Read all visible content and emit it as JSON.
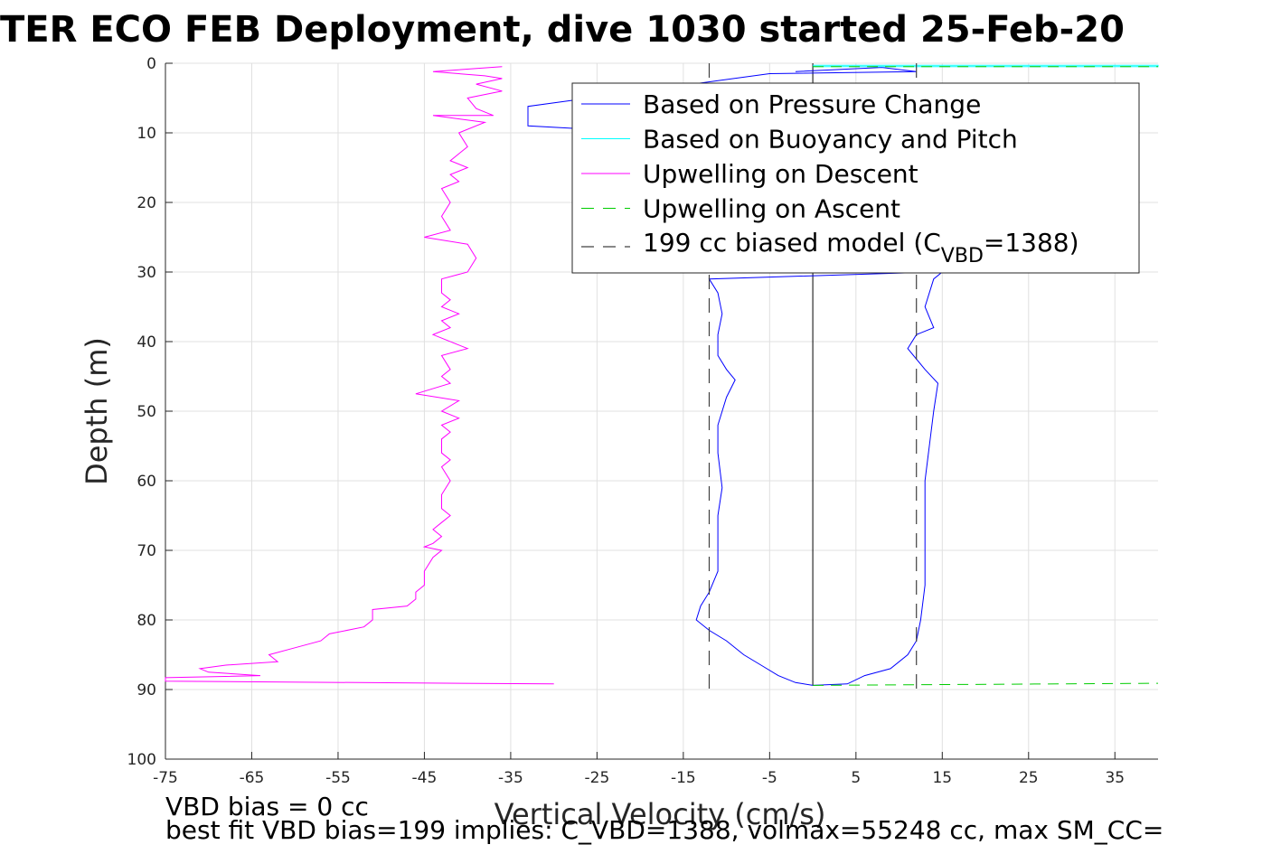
{
  "chart_data": {
    "type": "line",
    "title": "TER ECO FEB Deployment, dive 1030 started 25-Feb-20",
    "xlabel": "Vertical Velocity (cm/s)",
    "ylabel": "Depth (m)",
    "xlim": [
      -75,
      40
    ],
    "ylim": [
      0,
      100
    ],
    "y_reversed": true,
    "grid": true,
    "x_ticks": [
      "-75",
      "-65",
      "-55",
      "-45",
      "-35",
      "-25",
      "-15",
      "-5",
      "5",
      "15",
      "25",
      "35"
    ],
    "y_ticks": [
      "0",
      "10",
      "20",
      "30",
      "40",
      "50",
      "60",
      "70",
      "80",
      "90",
      "100"
    ],
    "legend_position": "top-right",
    "legend": {
      "entries": [
        {
          "label": "Based on Pressure Change",
          "color": "#0000ff",
          "style": "solid"
        },
        {
          "label": "Based on Buoyancy and Pitch",
          "color": "#00ffff",
          "style": "solid"
        },
        {
          "label": "Upwelling on Descent",
          "color": "#ff00ff",
          "style": "solid"
        },
        {
          "label": "Upwelling on Ascent",
          "color": "#00cc00",
          "style": "dashed"
        }
      ],
      "model_prefix": "199 cc biased model (C",
      "model_sub": "VBD",
      "model_suffix": "=1388)",
      "model_color": "#404040"
    },
    "series": [
      {
        "name": "Based on Pressure Change",
        "color": "#0000ff",
        "points": [
          [
            -2,
            1.2
          ],
          [
            8,
            0.6
          ],
          [
            12,
            1.2
          ],
          [
            -5,
            1.5
          ],
          [
            -33,
            6.2
          ],
          [
            -33,
            9
          ],
          [
            -3,
            11
          ],
          [
            5,
            12
          ],
          [
            12,
            13
          ],
          [
            15,
            15
          ],
          [
            16,
            20
          ],
          [
            15,
            26
          ],
          [
            14,
            30
          ],
          [
            -12,
            31
          ],
          [
            -11,
            33
          ],
          [
            -10.5,
            36
          ],
          [
            -11,
            39
          ],
          [
            -11,
            42
          ],
          [
            -10,
            44
          ],
          [
            -9,
            45.5
          ],
          [
            -10,
            48
          ],
          [
            -11,
            52
          ],
          [
            -11,
            56
          ],
          [
            -10.5,
            61
          ],
          [
            -11,
            65
          ],
          [
            -11,
            70
          ],
          [
            -11,
            73
          ],
          [
            -12,
            76
          ],
          [
            -13,
            78
          ],
          [
            -13.5,
            80
          ],
          [
            -12,
            81.5
          ],
          [
            -10,
            83
          ],
          [
            -8,
            85
          ],
          [
            -6,
            86.5
          ],
          [
            -4,
            88
          ],
          [
            -2,
            89
          ],
          [
            0,
            89.4
          ],
          [
            4,
            89.2
          ],
          [
            6,
            88
          ],
          [
            9,
            87
          ],
          [
            11,
            85
          ],
          [
            12,
            83
          ],
          [
            12.5,
            80
          ],
          [
            13,
            75
          ],
          [
            13,
            70
          ],
          [
            13,
            65
          ],
          [
            13,
            60
          ],
          [
            13.5,
            55
          ],
          [
            14,
            50
          ],
          [
            14.5,
            46
          ],
          [
            13,
            44
          ],
          [
            11,
            41
          ],
          [
            12,
            39
          ],
          [
            14,
            38
          ],
          [
            13,
            35
          ],
          [
            14,
            31
          ],
          [
            15,
            30
          ]
        ]
      },
      {
        "name": "Based on Buoyancy and Pitch",
        "color": "#00ffff",
        "points": [
          [
            0,
            0.3
          ],
          [
            40,
            0.3
          ],
          [
            40,
            0.5
          ],
          [
            0,
            0.5
          ]
        ]
      },
      {
        "name": "Upwelling on Descent",
        "color": "#ff00ff",
        "points": [
          [
            -36,
            0.5
          ],
          [
            -44,
            1.2
          ],
          [
            -38,
            1.8
          ],
          [
            -36,
            2.2
          ],
          [
            -39,
            3
          ],
          [
            -36,
            4
          ],
          [
            -40,
            5
          ],
          [
            -39,
            6.5
          ],
          [
            -37,
            7.5
          ],
          [
            -44,
            7.5
          ],
          [
            -38,
            8.5
          ],
          [
            -41,
            10
          ],
          [
            -40,
            12
          ],
          [
            -41,
            13
          ],
          [
            -42,
            14
          ],
          [
            -40,
            15
          ],
          [
            -42,
            16
          ],
          [
            -41,
            17
          ],
          [
            -43,
            18
          ],
          [
            -42,
            20
          ],
          [
            -43,
            22
          ],
          [
            -42,
            24
          ],
          [
            -45,
            25
          ],
          [
            -40,
            26
          ],
          [
            -39,
            28
          ],
          [
            -40,
            30
          ],
          [
            -43,
            31
          ],
          [
            -43,
            33
          ],
          [
            -42,
            34
          ],
          [
            -43,
            35
          ],
          [
            -41,
            36
          ],
          [
            -43,
            37
          ],
          [
            -42,
            38
          ],
          [
            -44,
            39
          ],
          [
            -40,
            41
          ],
          [
            -43,
            42
          ],
          [
            -42,
            44
          ],
          [
            -43,
            45
          ],
          [
            -42,
            46
          ],
          [
            -46,
            47.5
          ],
          [
            -41,
            48.5
          ],
          [
            -43,
            50
          ],
          [
            -41,
            51
          ],
          [
            -43,
            52
          ],
          [
            -42,
            53
          ],
          [
            -43,
            54
          ],
          [
            -43,
            56
          ],
          [
            -42,
            57
          ],
          [
            -43,
            58
          ],
          [
            -42,
            60
          ],
          [
            -43,
            62
          ],
          [
            -43,
            64
          ],
          [
            -42,
            65
          ],
          [
            -43,
            66
          ],
          [
            -44,
            67
          ],
          [
            -43,
            68
          ],
          [
            -44,
            69
          ],
          [
            -45,
            69.5
          ],
          [
            -43,
            70
          ],
          [
            -44,
            71
          ],
          [
            -45,
            73
          ],
          [
            -45,
            75
          ],
          [
            -46,
            76
          ],
          [
            -46,
            77
          ],
          [
            -47,
            78
          ],
          [
            -51,
            78.5
          ],
          [
            -51,
            80
          ],
          [
            -52,
            81
          ],
          [
            -56,
            82
          ],
          [
            -57,
            83
          ],
          [
            -60,
            84
          ],
          [
            -63,
            85
          ],
          [
            -62,
            86
          ],
          [
            -68,
            86.5
          ],
          [
            -71,
            87
          ],
          [
            -70,
            87.5
          ],
          [
            -64,
            88
          ],
          [
            -75,
            88.3
          ],
          [
            -75,
            88.8
          ],
          [
            -30,
            89.2
          ]
        ]
      },
      {
        "name": "Upwelling on Ascent",
        "color": "#00cc00",
        "points": [
          [
            0,
            89.4
          ],
          [
            40,
            89.1
          ]
        ],
        "extra_segments": [
          [
            [
              0,
              0.5
            ],
            [
              40,
              0.5
            ]
          ]
        ]
      },
      {
        "name": "199 cc biased model",
        "color": "#404040",
        "dashed": true,
        "segments": [
          [
            [
              -12,
              0
            ],
            [
              -12,
              90
            ]
          ],
          [
            [
              12,
              0
            ],
            [
              12,
              90
            ]
          ]
        ]
      }
    ],
    "reference_line_x": 0
  },
  "footer": {
    "line1": "VBD bias = 0 cc",
    "line2": "best fit VBD bias=199 implies: C_VBD=1388, volmax=55248 cc, max SM_CC="
  }
}
